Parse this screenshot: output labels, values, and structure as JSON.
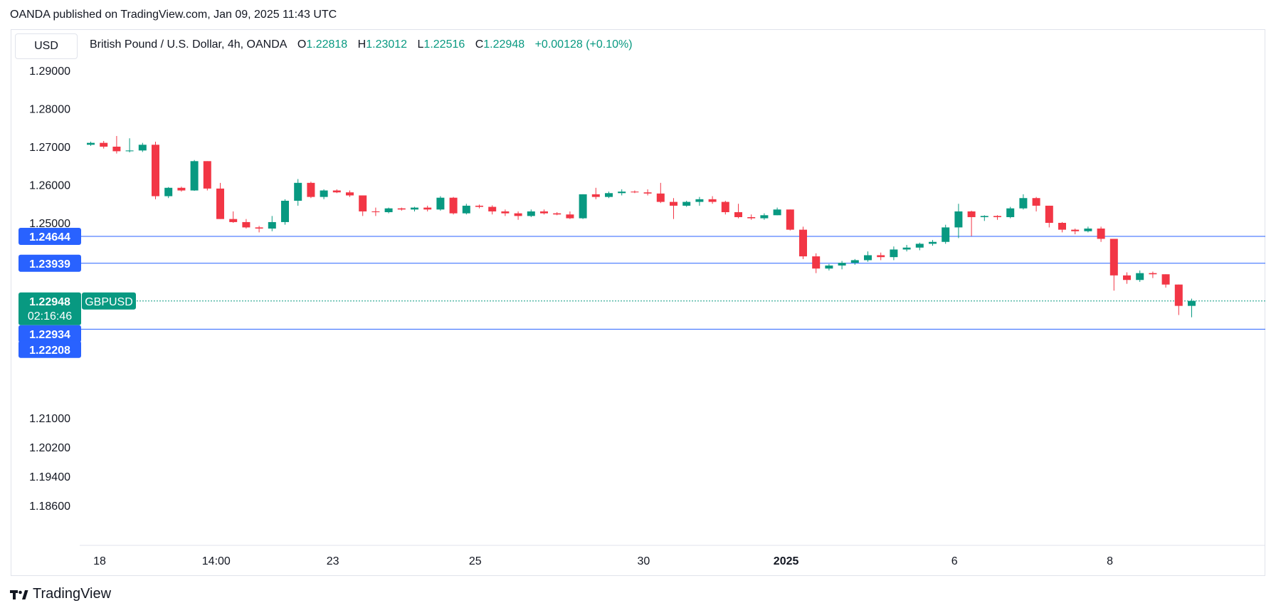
{
  "header": {
    "published": "OANDA published on TradingView.com, Jan 09, 2025 11:43 UTC"
  },
  "currency_button": "USD",
  "legend": {
    "title": "British Pound / U.S. Dollar, 4h, OANDA",
    "open_label": "O",
    "open": "1.22818",
    "high_label": "H",
    "high": "1.23012",
    "low_label": "L",
    "low": "1.22516",
    "close_label": "C",
    "close": "1.22948",
    "change": "+0.00128 (+0.10%)"
  },
  "brand": {
    "logo_icon": "tradingview-logo-icon",
    "name": "TradingView"
  },
  "colors": {
    "up": "#089981",
    "down": "#f23645",
    "level_line": "#2962ff",
    "grid_border": "#e0e3eb"
  },
  "chart_data": {
    "type": "candlestick",
    "symbol": "GBPUSD",
    "timeframe": "4h",
    "y_ticks": [
      {
        "label": "1.29000",
        "value": 1.29
      },
      {
        "label": "1.28000",
        "value": 1.28
      },
      {
        "label": "1.27000",
        "value": 1.27
      },
      {
        "label": "1.26000",
        "value": 1.26
      },
      {
        "label": "1.25000",
        "value": 1.25
      },
      {
        "label": "1.21000",
        "value": 1.21
      },
      {
        "label": "1.20200",
        "value": 1.202
      },
      {
        "label": "1.19400",
        "value": 1.194
      },
      {
        "label": "1.18600",
        "value": 1.186
      }
    ],
    "x_ticks": [
      {
        "label": "18",
        "bar": 0,
        "bold": false
      },
      {
        "label": "14:00",
        "bar": 9,
        "bold": false
      },
      {
        "label": "23",
        "bar": 18,
        "bold": false
      },
      {
        "label": "25",
        "bar": 29,
        "bold": false
      },
      {
        "label": "30",
        "bar": 42,
        "bold": false
      },
      {
        "label": "2025",
        "bar": 53,
        "bold": true
      },
      {
        "label": "6",
        "bar": 66,
        "bold": false
      },
      {
        "label": "8",
        "bar": 78,
        "bold": false
      }
    ],
    "levels": [
      {
        "label": "1.24644",
        "value": 1.24644,
        "style": "solid"
      },
      {
        "label": "1.23939",
        "value": 1.23939,
        "style": "solid"
      },
      {
        "label": "1.22208",
        "value": 1.22208,
        "style": "solid"
      }
    ],
    "price_line": {
      "label": "1.22948",
      "value": 1.22948,
      "symbol": "GBPUSD",
      "countdown": "02:16:46",
      "prev_label": "1.22934"
    },
    "candles": [
      [
        1.2705,
        1.2713,
        1.2702,
        1.271
      ],
      [
        1.271,
        1.2715,
        1.2695,
        1.27
      ],
      [
        1.27,
        1.2728,
        1.2682,
        1.2688
      ],
      [
        1.2688,
        1.2722,
        1.2685,
        1.269
      ],
      [
        1.269,
        1.271,
        1.2686,
        1.2705
      ],
      [
        1.2705,
        1.2713,
        1.2562,
        1.257
      ],
      [
        1.257,
        1.2594,
        1.2565,
        1.2592
      ],
      [
        1.2592,
        1.2595,
        1.2582,
        1.2585
      ],
      [
        1.2585,
        1.2665,
        1.2584,
        1.2662
      ],
      [
        1.2662,
        1.2662,
        1.2585,
        1.259
      ],
      [
        1.259,
        1.2605,
        1.251,
        1.251
      ],
      [
        1.251,
        1.253,
        1.25,
        1.2502
      ],
      [
        1.2502,
        1.251,
        1.2485,
        1.2488
      ],
      [
        1.2488,
        1.2492,
        1.2475,
        1.2485
      ],
      [
        1.2485,
        1.2518,
        1.2478,
        1.2502
      ],
      [
        1.2502,
        1.2562,
        1.2495,
        1.2558
      ],
      [
        1.2558,
        1.2615,
        1.2545,
        1.2605
      ],
      [
        1.2605,
        1.2608,
        1.2565,
        1.2568
      ],
      [
        1.2568,
        1.2588,
        1.2562,
        1.2585
      ],
      [
        1.2585,
        1.2588,
        1.2578,
        1.258
      ],
      [
        1.258,
        1.2585,
        1.2568,
        1.2572
      ],
      [
        1.2572,
        1.2572,
        1.2518,
        1.253
      ],
      [
        1.253,
        1.254,
        1.2518,
        1.2528
      ],
      [
        1.2528,
        1.254,
        1.2525,
        1.2538
      ],
      [
        1.2538,
        1.254,
        1.2532,
        1.2535
      ],
      [
        1.2535,
        1.2542,
        1.253,
        1.254
      ],
      [
        1.254,
        1.2545,
        1.253,
        1.2535
      ],
      [
        1.2535,
        1.257,
        1.2532,
        1.2566
      ],
      [
        1.2566,
        1.2568,
        1.2522,
        1.2525
      ],
      [
        1.2525,
        1.255,
        1.2522,
        1.2545
      ],
      [
        1.2545,
        1.2548,
        1.2538,
        1.2542
      ],
      [
        1.2542,
        1.2546,
        1.2522,
        1.253
      ],
      [
        1.253,
        1.2535,
        1.2518,
        1.2525
      ],
      [
        1.2525,
        1.253,
        1.2508,
        1.2518
      ],
      [
        1.2518,
        1.2535,
        1.2515,
        1.253
      ],
      [
        1.253,
        1.2535,
        1.2522,
        1.2525
      ],
      [
        1.2525,
        1.2528,
        1.252,
        1.2522
      ],
      [
        1.2522,
        1.253,
        1.251,
        1.2512
      ],
      [
        1.2512,
        1.2575,
        1.251,
        1.2575
      ],
      [
        1.2575,
        1.2592,
        1.2562,
        1.2568
      ],
      [
        1.2568,
        1.2582,
        1.2565,
        1.2578
      ],
      [
        1.2578,
        1.2588,
        1.2572,
        1.2582
      ],
      [
        1.2582,
        1.2585,
        1.2578,
        1.258
      ],
      [
        1.258,
        1.2588,
        1.2572,
        1.2577
      ],
      [
        1.2577,
        1.2605,
        1.2552,
        1.2555
      ],
      [
        1.2555,
        1.2565,
        1.251,
        1.2545
      ],
      [
        1.2545,
        1.2558,
        1.2542,
        1.2555
      ],
      [
        1.2555,
        1.2568,
        1.2545,
        1.2562
      ],
      [
        1.2562,
        1.257,
        1.255,
        1.2555
      ],
      [
        1.2555,
        1.2558,
        1.2522,
        1.2528
      ],
      [
        1.2528,
        1.255,
        1.2512,
        1.2515
      ],
      [
        1.2515,
        1.2522,
        1.2508,
        1.2512
      ],
      [
        1.2512,
        1.2525,
        1.2508,
        1.252
      ],
      [
        1.252,
        1.254,
        1.252,
        1.2535
      ],
      [
        1.2535,
        1.2535,
        1.248,
        1.2482
      ],
      [
        1.2482,
        1.249,
        1.2405,
        1.2412
      ],
      [
        1.2412,
        1.242,
        1.2368,
        1.238
      ],
      [
        1.238,
        1.2392,
        1.2375,
        1.2388
      ],
      [
        1.2388,
        1.24,
        1.2378,
        1.2395
      ],
      [
        1.2395,
        1.2405,
        1.239,
        1.2402
      ],
      [
        1.2402,
        1.2425,
        1.2398,
        1.2415
      ],
      [
        1.2415,
        1.2422,
        1.2402,
        1.241
      ],
      [
        1.241,
        1.2438,
        1.2402,
        1.243
      ],
      [
        1.243,
        1.2442,
        1.2425,
        1.2435
      ],
      [
        1.2435,
        1.2448,
        1.2428,
        1.2445
      ],
      [
        1.2445,
        1.2455,
        1.244,
        1.245
      ],
      [
        1.245,
        1.2495,
        1.2445,
        1.2488
      ],
      [
        1.2488,
        1.255,
        1.246,
        1.253
      ],
      [
        1.253,
        1.2532,
        1.2465,
        1.2515
      ],
      [
        1.2515,
        1.252,
        1.2505,
        1.2518
      ],
      [
        1.2518,
        1.252,
        1.2508,
        1.2515
      ],
      [
        1.2515,
        1.2542,
        1.2512,
        1.2538
      ],
      [
        1.2538,
        1.2575,
        1.2535,
        1.2565
      ],
      [
        1.2565,
        1.2568,
        1.253,
        1.2545
      ],
      [
        1.2545,
        1.2545,
        1.2488,
        1.25
      ],
      [
        1.25,
        1.2502,
        1.2475,
        1.2482
      ],
      [
        1.2482,
        1.2485,
        1.247,
        1.2478
      ],
      [
        1.2478,
        1.249,
        1.2475,
        1.2485
      ],
      [
        1.2485,
        1.249,
        1.245,
        1.2458
      ],
      [
        1.2458,
        1.2458,
        1.2322,
        1.2362
      ],
      [
        1.2362,
        1.237,
        1.234,
        1.235
      ],
      [
        1.235,
        1.2375,
        1.2345,
        1.2368
      ],
      [
        1.2368,
        1.2372,
        1.2355,
        1.2365
      ],
      [
        1.2365,
        1.2365,
        1.233,
        1.2338
      ],
      [
        1.2338,
        1.2338,
        1.2258,
        1.2282
      ],
      [
        1.2282,
        1.2301,
        1.2252,
        1.2295
      ]
    ]
  }
}
